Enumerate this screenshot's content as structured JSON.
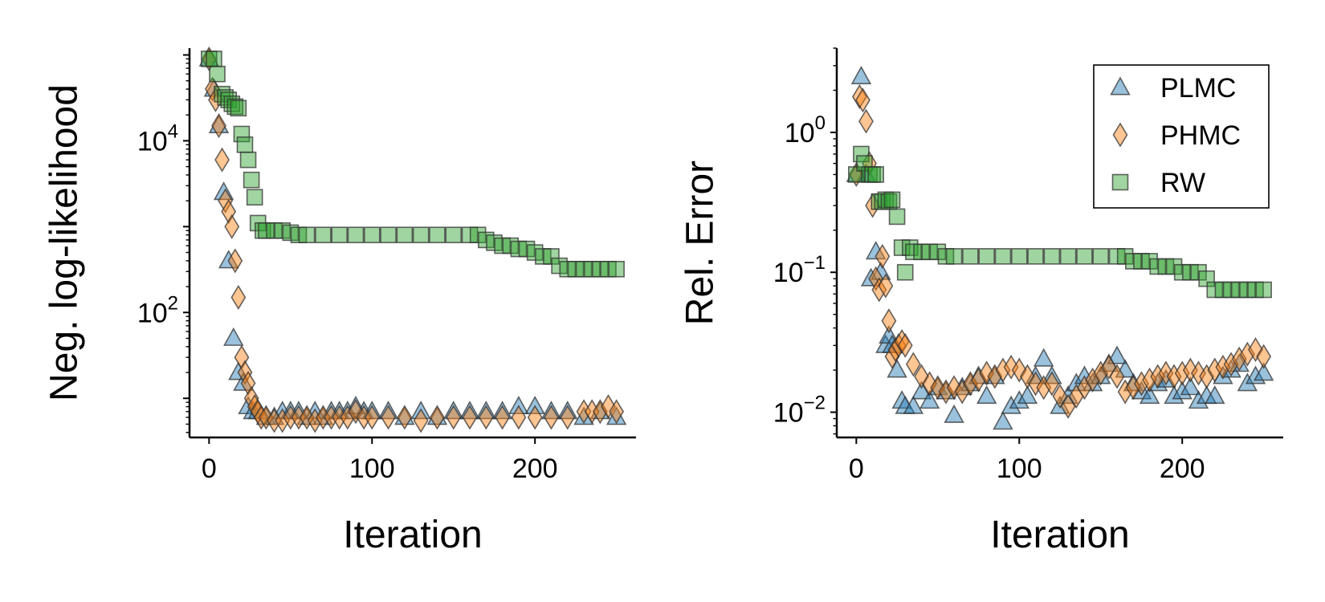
{
  "series_styles": [
    {
      "name": "PLMC",
      "marker": "triangle",
      "color": "#1f77b4"
    },
    {
      "name": "PHMC",
      "marker": "diamond",
      "color": "#ff7f0e"
    },
    {
      "name": "RW",
      "marker": "square",
      "color": "#2ca02c"
    }
  ],
  "chart_data": [
    {
      "type": "scatter",
      "title": "",
      "xlabel": "Iteration",
      "ylabel": "Neg. log-likelihood",
      "xlim": [
        -12,
        262
      ],
      "ylim": [
        3.5,
        120000
      ],
      "yscale": "log",
      "x_ticks": [
        0,
        100,
        200
      ],
      "x_tick_labels": [
        "0",
        "100",
        "200"
      ],
      "y_ticks": [
        100,
        10000
      ],
      "y_tick_labels": [
        {
          "base": "10",
          "exp": "2"
        },
        {
          "base": "10",
          "exp": "4"
        }
      ],
      "grid": false,
      "legend": "none",
      "series": [
        {
          "name": "PLMC",
          "x": [
            0,
            3,
            6,
            9,
            12,
            15,
            18,
            21,
            24,
            27,
            30,
            35,
            40,
            45,
            50,
            55,
            60,
            65,
            70,
            75,
            80,
            85,
            90,
            95,
            100,
            110,
            120,
            130,
            140,
            150,
            160,
            170,
            180,
            190,
            200,
            210,
            220,
            230,
            240,
            250
          ],
          "y": [
            90000,
            40000,
            15000,
            2500,
            400,
            50,
            20,
            15,
            8,
            7,
            7,
            6,
            6,
            7,
            7,
            7,
            6,
            7,
            6,
            7,
            7,
            7,
            8,
            7,
            7,
            7,
            6,
            7,
            6,
            7,
            7,
            7,
            7,
            8,
            8,
            7,
            7,
            6,
            7,
            6
          ]
        },
        {
          "name": "PHMC",
          "x": [
            0,
            2,
            4,
            6,
            8,
            10,
            12,
            14,
            16,
            18,
            20,
            22,
            24,
            26,
            28,
            30,
            32,
            35,
            40,
            45,
            50,
            55,
            60,
            65,
            70,
            75,
            80,
            85,
            90,
            95,
            100,
            110,
            120,
            130,
            140,
            150,
            160,
            170,
            180,
            190,
            200,
            210,
            220,
            230,
            235,
            240,
            245,
            250
          ],
          "y": [
            90000,
            40000,
            30000,
            15000,
            6000,
            2000,
            1500,
            1000,
            400,
            150,
            30,
            20,
            15,
            10,
            8,
            7,
            6,
            6,
            5.5,
            5.5,
            6,
            6,
            6,
            5.5,
            6,
            6,
            6,
            6,
            7,
            6,
            6,
            6,
            6,
            5.5,
            6,
            6,
            6,
            6,
            6,
            6,
            6,
            6,
            6,
            7,
            7,
            7,
            8,
            7
          ]
        },
        {
          "name": "RW",
          "x": [
            0,
            3,
            5,
            8,
            10,
            12,
            14,
            16,
            18,
            20,
            22,
            24,
            26,
            28,
            30,
            33,
            35,
            40,
            45,
            50,
            55,
            60,
            70,
            80,
            90,
            100,
            110,
            120,
            130,
            140,
            150,
            160,
            165,
            170,
            175,
            180,
            185,
            190,
            195,
            200,
            205,
            210,
            215,
            220,
            225,
            230,
            235,
            240,
            245,
            250
          ],
          "y": [
            90000,
            90000,
            60000,
            35000,
            32000,
            30000,
            27000,
            25000,
            24000,
            12000,
            9000,
            6000,
            3500,
            2200,
            1100,
            900,
            900,
            900,
            900,
            850,
            800,
            800,
            800,
            800,
            800,
            800,
            800,
            800,
            800,
            800,
            800,
            800,
            800,
            700,
            650,
            600,
            600,
            550,
            550,
            500,
            450,
            450,
            350,
            320,
            320,
            320,
            320,
            320,
            320,
            320
          ]
        }
      ]
    },
    {
      "type": "scatter",
      "title": "",
      "xlabel": "Iteration",
      "ylabel": "Rel. Error",
      "xlim": [
        -12,
        262
      ],
      "ylim": [
        0.0066,
        4
      ],
      "yscale": "log",
      "x_ticks": [
        0,
        100,
        200
      ],
      "x_tick_labels": [
        "0",
        "100",
        "200"
      ],
      "y_ticks": [
        0.01,
        0.1,
        1
      ],
      "y_tick_labels": [
        {
          "base": "10",
          "exp": "−2"
        },
        {
          "base": "10",
          "exp": "−1"
        },
        {
          "base": "10",
          "exp": "0"
        }
      ],
      "grid": false,
      "legend": "top-right",
      "series": [
        {
          "name": "PLMC",
          "x": [
            0,
            3,
            6,
            9,
            12,
            15,
            18,
            20,
            22,
            25,
            28,
            30,
            35,
            40,
            45,
            50,
            55,
            60,
            65,
            70,
            75,
            80,
            85,
            90,
            95,
            100,
            105,
            110,
            115,
            120,
            125,
            130,
            135,
            140,
            145,
            150,
            155,
            160,
            165,
            170,
            175,
            180,
            185,
            190,
            195,
            200,
            205,
            210,
            215,
            220,
            225,
            230,
            235,
            240,
            245,
            250
          ],
          "y": [
            0.5,
            2.5,
            0.5,
            0.09,
            0.14,
            0.1,
            0.03,
            0.035,
            0.03,
            0.02,
            0.012,
            0.011,
            0.011,
            0.014,
            0.012,
            0.015,
            0.014,
            0.0095,
            0.015,
            0.016,
            0.018,
            0.013,
            0.018,
            0.0085,
            0.011,
            0.012,
            0.013,
            0.018,
            0.024,
            0.018,
            0.011,
            0.013,
            0.016,
            0.018,
            0.016,
            0.018,
            0.022,
            0.025,
            0.02,
            0.016,
            0.014,
            0.013,
            0.016,
            0.017,
            0.013,
            0.014,
            0.015,
            0.012,
            0.013,
            0.013,
            0.018,
            0.02,
            0.022,
            0.016,
            0.018,
            0.019
          ]
        },
        {
          "name": "PHMC",
          "x": [
            0,
            2,
            4,
            6,
            8,
            10,
            12,
            14,
            16,
            18,
            20,
            22,
            24,
            26,
            28,
            30,
            35,
            40,
            45,
            50,
            55,
            60,
            65,
            70,
            75,
            80,
            85,
            90,
            95,
            100,
            105,
            110,
            115,
            120,
            125,
            130,
            135,
            140,
            145,
            150,
            155,
            160,
            165,
            170,
            175,
            180,
            185,
            190,
            195,
            200,
            205,
            210,
            215,
            220,
            225,
            230,
            235,
            240,
            245,
            250
          ],
          "y": [
            0.5,
            1.8,
            1.7,
            1.2,
            0.6,
            0.3,
            0.09,
            0.075,
            0.13,
            0.08,
            0.045,
            0.025,
            0.028,
            0.03,
            0.032,
            0.03,
            0.022,
            0.018,
            0.016,
            0.015,
            0.014,
            0.015,
            0.014,
            0.016,
            0.017,
            0.019,
            0.018,
            0.02,
            0.021,
            0.02,
            0.018,
            0.016,
            0.015,
            0.016,
            0.013,
            0.011,
            0.013,
            0.015,
            0.017,
            0.019,
            0.021,
            0.018,
            0.014,
            0.015,
            0.016,
            0.017,
            0.018,
            0.019,
            0.018,
            0.019,
            0.02,
            0.019,
            0.018,
            0.02,
            0.021,
            0.022,
            0.024,
            0.026,
            0.028,
            0.025
          ]
        },
        {
          "name": "RW",
          "x": [
            0,
            3,
            5,
            8,
            10,
            12,
            14,
            16,
            18,
            20,
            22,
            25,
            28,
            30,
            33,
            35,
            40,
            45,
            50,
            55,
            60,
            70,
            80,
            90,
            100,
            110,
            120,
            130,
            140,
            150,
            160,
            165,
            170,
            175,
            180,
            185,
            190,
            195,
            200,
            205,
            210,
            215,
            220,
            225,
            230,
            235,
            240,
            245,
            250
          ],
          "y": [
            0.5,
            0.7,
            0.6,
            0.5,
            0.5,
            0.5,
            0.32,
            0.32,
            0.33,
            0.32,
            0.33,
            0.25,
            0.15,
            0.1,
            0.15,
            0.14,
            0.14,
            0.14,
            0.14,
            0.13,
            0.13,
            0.13,
            0.13,
            0.13,
            0.13,
            0.13,
            0.13,
            0.13,
            0.13,
            0.13,
            0.13,
            0.13,
            0.12,
            0.12,
            0.12,
            0.11,
            0.11,
            0.11,
            0.1,
            0.1,
            0.1,
            0.09,
            0.075,
            0.075,
            0.075,
            0.075,
            0.075,
            0.075,
            0.075
          ]
        }
      ]
    }
  ]
}
